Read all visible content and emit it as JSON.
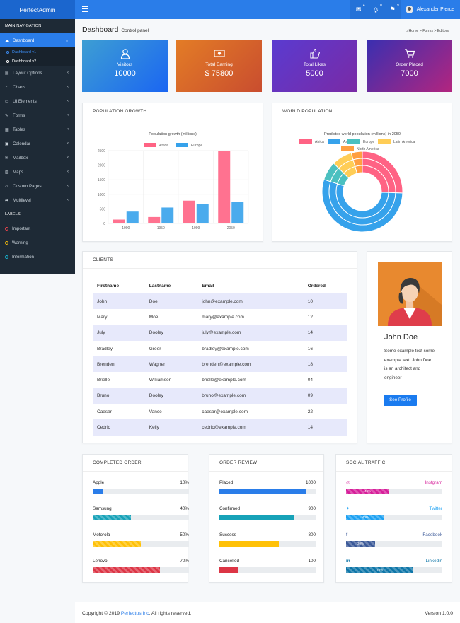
{
  "brand": "PerfectAdmin",
  "topbar": {
    "icons": [
      {
        "name": "mail-icon",
        "glyph": "✉",
        "badge": "4"
      },
      {
        "name": "bell-icon",
        "glyph": "♫",
        "badge": "10"
      },
      {
        "name": "flag-icon",
        "glyph": "⚑",
        "badge": "9"
      }
    ],
    "user_name": "Alexander Pierce"
  },
  "sidebar": {
    "main_nav_header": "MAIN NAVIGATION",
    "dashboard": "Dashboard",
    "dashboard_subs": [
      "Dashboard v1",
      "Dashboard v2"
    ],
    "items": [
      {
        "label": "Layout Options",
        "icon": "▤",
        "icon_name": "layout-icon"
      },
      {
        "label": "Charts",
        "icon": "◔",
        "icon_name": "chart-pie-icon"
      },
      {
        "label": "UI Elements",
        "icon": "▭",
        "icon_name": "laptop-icon"
      },
      {
        "label": "Forms",
        "icon": "✎",
        "icon_name": "edit-icon"
      },
      {
        "label": "Tables",
        "icon": "▦",
        "icon_name": "table-icon"
      },
      {
        "label": "Calendar",
        "icon": "▣",
        "icon_name": "calendar-icon"
      },
      {
        "label": "Mailbox",
        "icon": "✉",
        "icon_name": "envelope-icon"
      },
      {
        "label": "Maps",
        "icon": "▨",
        "icon_name": "map-icon"
      },
      {
        "label": "Custom Pages",
        "icon": "▱",
        "icon_name": "folder-icon"
      },
      {
        "label": "Multilevel",
        "icon": "➦",
        "icon_name": "share-icon"
      }
    ],
    "labels_header": "LABELS",
    "labels": [
      {
        "label": "Important",
        "color": "#e8434d"
      },
      {
        "label": "Warning",
        "color": "#f1b90e"
      },
      {
        "label": "Information",
        "color": "#17b5d0"
      }
    ]
  },
  "page": {
    "title": "Dashboard",
    "subtitle": "Control panel",
    "breadcrumb": [
      "Home",
      "Forms",
      "Editors"
    ]
  },
  "stats": [
    {
      "label": "Visitors",
      "value": "10000",
      "icon": "user-icon"
    },
    {
      "label": "Total Earning",
      "value": "$ 75800",
      "icon": "money-icon"
    },
    {
      "label": "Total Likes",
      "value": "5000",
      "icon": "thumbs-up-icon"
    },
    {
      "label": "Order Placed",
      "value": "7000",
      "icon": "cart-icon"
    }
  ],
  "population_card": {
    "title": "POPULATION GROWTH"
  },
  "world_card": {
    "title": "WORLD POPULATION"
  },
  "chart_data": [
    {
      "type": "bar",
      "title": "Population growth (millions)",
      "categories": [
        "1900",
        "1950",
        "1999",
        "2050"
      ],
      "series": [
        {
          "name": "Africa",
          "values": [
            133,
            221,
            783,
            2478
          ],
          "color": "#ff6384"
        },
        {
          "name": "Europe",
          "values": [
            408,
            547,
            675,
            734
          ],
          "color": "#36a2eb"
        }
      ],
      "ylim": [
        0,
        2500
      ],
      "yticks": [
        0,
        500,
        1000,
        1500,
        2000,
        2500
      ],
      "legend": "top",
      "grid": true
    },
    {
      "type": "pie",
      "subtype": "doughnut-multi-ring",
      "title": "Predicted world population (millions) in 2050",
      "categories": [
        "Africa",
        "Asia",
        "Europe",
        "Latin America",
        "North America"
      ],
      "colors": [
        "#ff6384",
        "#36a2eb",
        "#4bc0c0",
        "#ffcd56",
        "#ff9f40"
      ],
      "series": [
        {
          "values": [
            2478,
            5267,
            734,
            784,
            433
          ]
        },
        {
          "values": [
            2478,
            5267,
            734,
            784,
            433
          ]
        },
        {
          "values": [
            2478,
            5267,
            734,
            784,
            433
          ]
        }
      ],
      "legend": "top"
    }
  ],
  "clients": {
    "title": "CLIENTS",
    "columns": [
      "Firstname",
      "Lastname",
      "Email",
      "Ordered"
    ],
    "rows": [
      [
        "John",
        "Doe",
        "john@example.com",
        "10"
      ],
      [
        "Mary",
        "Moe",
        "mary@example.com",
        "12"
      ],
      [
        "July",
        "Dooley",
        "july@example.com",
        "14"
      ],
      [
        "Bradley",
        "Greer",
        "bradley@example.com",
        "16"
      ],
      [
        "Brenden",
        "Wagner",
        "brenden@example.com",
        "18"
      ],
      [
        "Brielle",
        "Williamson",
        "brielle@example.com",
        "04"
      ],
      [
        "Bruno",
        "Dooley",
        "bruno@example.com",
        "09"
      ],
      [
        "Caesar",
        "Vance",
        "caesar@example.com",
        "22"
      ],
      [
        "Cedric",
        "Kelly",
        "cedric@example.com",
        "14"
      ]
    ]
  },
  "profile": {
    "name": "John Doe",
    "bio": "Some example text some example text. John Doe is an architect and engineer",
    "button": "See Profile"
  },
  "completed_order": {
    "title": "COMPLETED ORDER",
    "items": [
      {
        "label": "Apple",
        "pct_label": "10%",
        "value": 0.1,
        "color": "#2a7de9"
      },
      {
        "label": "Samsung",
        "pct_label": "40%",
        "value": 0.4,
        "color": "#17a2b8"
      },
      {
        "label": "Motorola",
        "pct_label": "50%",
        "value": 0.5,
        "color": "#ffc107"
      },
      {
        "label": "Lenovo",
        "pct_label": "70%",
        "value": 0.7,
        "color": "#dc3545"
      }
    ]
  },
  "order_review": {
    "title": "ORDER REVIEW",
    "items": [
      {
        "label": "Placed",
        "count": "1000",
        "value": 0.9,
        "color": "#2a7de9"
      },
      {
        "label": "Confirmed",
        "count": "900",
        "value": 0.78,
        "color": "#17a2b8"
      },
      {
        "label": "Success",
        "count": "800",
        "value": 0.62,
        "color": "#ffc107"
      },
      {
        "label": "Cancelled",
        "count": "100",
        "value": 0.2,
        "color": "#dc3545"
      }
    ]
  },
  "social_traffic": {
    "title": "SOCIAL TRAFFIC",
    "items": [
      {
        "name": "Instgram",
        "icon": "instagram-icon",
        "glyph": "◎",
        "pct_label": "45%",
        "value": 0.45,
        "color": "#d61f9a"
      },
      {
        "name": "Twitter",
        "icon": "twitter-icon",
        "glyph": "✦",
        "pct_label": "40%",
        "value": 0.4,
        "color": "#1da1f2"
      },
      {
        "name": "Facebook",
        "icon": "facebook-icon",
        "glyph": "f",
        "pct_label": "30%",
        "value": 0.3,
        "color": "#3b5998"
      },
      {
        "name": "Linkedin",
        "icon": "linkedin-icon",
        "glyph": "in",
        "pct_label": "70%",
        "value": 0.7,
        "color": "#0e76a8"
      }
    ]
  },
  "footer": {
    "copyright_prefix": "Copyright © 2019 ",
    "company": "Perfectus Inc",
    "copyright_suffix": ". All rights reserved.",
    "version": "Version 1.0.0"
  }
}
